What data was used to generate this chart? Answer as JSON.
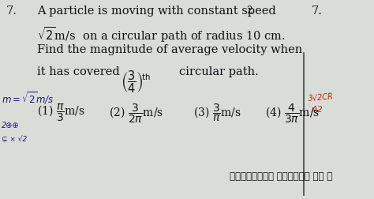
{
  "bg_color": "#d8ddd8",
  "text_color": "#111111",
  "fig_width": 4.74,
  "fig_height": 2.52,
  "dpi": 100,
  "q_num": "7.",
  "line1": "A particle is moving with constant speed",
  "line2": "$\\sqrt{2}$m/s  on a circular path of radius 10 cm.",
  "line3": "Find the magnitude of average velocity when",
  "line4_a": "it has covered",
  "line4_frac": "$\\left(\\dfrac{3}{4}\\right)^{\\!\\mathrm{th}}$",
  "line4_b": "circular path.",
  "ans1": "(1) $\\dfrac{\\pi}{3}$m/s",
  "ans2": "(2) $\\dfrac{3}{2\\pi}$m/s",
  "ans3": "(3) $\\dfrac{3}{\\pi}$m/s",
  "ans4": "(4) $\\dfrac{4}{3\\pi}$m/s",
  "side_num": "7.",
  "top_num": "2",
  "hw_note": "$m{=}\\sqrt{2}$m/s",
  "hindi_text": "प्रत्येक प्रश्न की अ",
  "fs_main": 10.5,
  "fs_ans": 10.0,
  "fs_small": 8.5,
  "line_color": "#444444",
  "annot_color": "#8B0000",
  "blue_color": "#1a1a6e"
}
